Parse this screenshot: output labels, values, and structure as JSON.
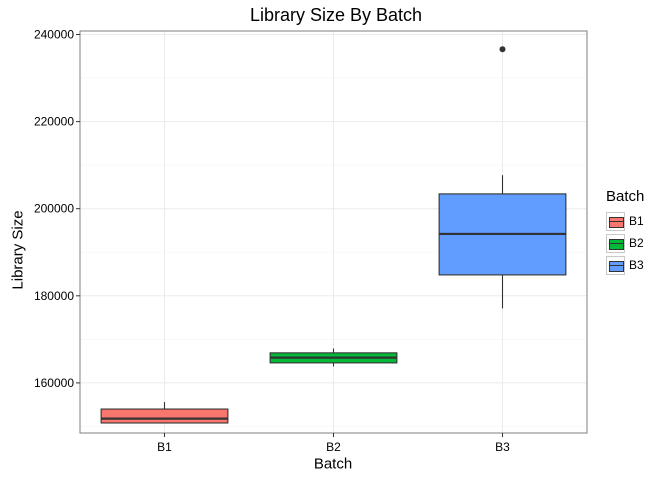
{
  "chart_data": {
    "type": "box",
    "title": "Library Size By Batch",
    "xlabel": "Batch",
    "ylabel": "Library Size",
    "categories": [
      "B1",
      "B2",
      "B3"
    ],
    "ylim": [
      148500,
      240800
    ],
    "yticks": [
      160000,
      180000,
      200000,
      220000,
      240000
    ],
    "ytick_labels": [
      "160000",
      "180000",
      "200000",
      "220000",
      "240000"
    ],
    "grid": true,
    "legend": {
      "title": "Batch",
      "placement": "right",
      "entries": [
        "B1",
        "B2",
        "B3"
      ]
    },
    "series": [
      {
        "name": "B1",
        "color": "#F8766D",
        "min": 150800,
        "q1": 150800,
        "median": 151800,
        "q3": 154000,
        "max": 155600,
        "outliers": []
      },
      {
        "name": "B2",
        "color": "#00BA38",
        "min": 163800,
        "q1": 164600,
        "median": 165800,
        "q3": 166900,
        "max": 167900,
        "outliers": []
      },
      {
        "name": "B3",
        "color": "#619CFF",
        "min": 177100,
        "q1": 184800,
        "median": 194200,
        "q3": 203400,
        "max": 207700,
        "outliers": [
          236600
        ]
      }
    ]
  }
}
